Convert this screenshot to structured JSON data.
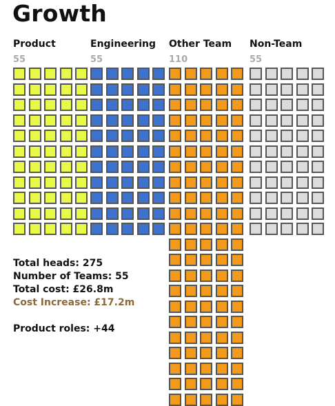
{
  "title": "Growth",
  "stats": {
    "total_heads": "Total heads: 275",
    "number_of_teams": "Number of Teams: 55",
    "total_cost": "Total cost: £26.8m",
    "cost_increase": "Cost Increase: £17.2m",
    "product_roles": "Product roles: +44"
  },
  "colors": {
    "cell_border": "#545454",
    "count_text": "#a9a9a9",
    "cost_increase": "#8a6a3a"
  },
  "chart_data": {
    "type": "waffle",
    "categories": [
      {
        "name": "Product",
        "count": "55",
        "value": 55,
        "color": "#e9f94a"
      },
      {
        "name": "Engineering",
        "count": "55",
        "value": 55,
        "color": "#3f72cc"
      },
      {
        "name": "Other Team",
        "count": "110",
        "value": 110,
        "color": "#f29a1b"
      },
      {
        "name": "Non-Team",
        "count": "55",
        "value": 55,
        "color": "#dcdcdc"
      }
    ]
  }
}
